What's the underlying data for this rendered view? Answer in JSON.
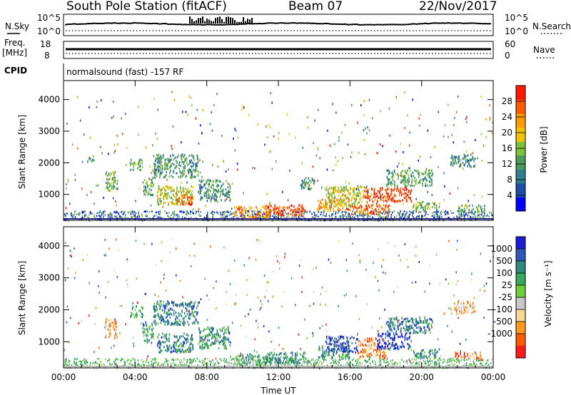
{
  "header": {
    "station": "South Pole Station (fitACF)",
    "beam": "Beam 07",
    "date": "22/Nov/2017"
  },
  "status_panel": {
    "nsky_label": "N.Sky",
    "nsky_ticks": [
      "10^5",
      "10^0"
    ],
    "nsearch_label": "N.Search",
    "nsearch_ticks": [
      "10^5",
      "10^0"
    ],
    "freq_label_line1": "Freq.",
    "freq_label_line2": "[MHz]",
    "freq_ticks": [
      "18",
      "8"
    ],
    "nave_label": "Nave",
    "nave_ticks": [
      "60",
      "0"
    ],
    "cpid_label": "CPID",
    "cpid_text": "normalsound (fast) -157 RF"
  },
  "chart_data": [
    {
      "type": "heatmap",
      "name": "power",
      "ylabel": "Slant Range [km]",
      "xlabel": "",
      "x_ticks": [
        "00:00",
        "04:00",
        "08:00",
        "12:00",
        "16:00",
        "20:00",
        "00:00"
      ],
      "x_range_hours": [
        0,
        24
      ],
      "y_ticks": [
        1000,
        2000,
        3000,
        4000
      ],
      "y_range": [
        180,
        4600
      ],
      "colorbar": {
        "label": "Power [dB]",
        "ticks": [
          4,
          8,
          12,
          16,
          20,
          24,
          28
        ],
        "range": [
          0,
          32
        ],
        "colors": [
          "#0000ff",
          "#1c4fa8",
          "#2f7f8f",
          "#4a9a5a",
          "#7fc13a",
          "#f2c400",
          "#ff9a00",
          "#ff5a00",
          "#ff1a00"
        ]
      },
      "patches": [
        {
          "t0": 1.3,
          "t1": 1.7,
          "r0": 2050,
          "r1": 2250,
          "level": 0.35
        },
        {
          "t0": 2.3,
          "t1": 3.0,
          "r0": 1150,
          "r1": 1750,
          "level": 0.45
        },
        {
          "t0": 3.7,
          "t1": 4.4,
          "r0": 1800,
          "r1": 2150,
          "level": 0.4
        },
        {
          "t0": 4.4,
          "t1": 5.0,
          "r0": 1000,
          "r1": 1600,
          "level": 0.4
        },
        {
          "t0": 5.2,
          "t1": 7.2,
          "r0": 700,
          "r1": 1300,
          "level": 0.55
        },
        {
          "t0": 6.3,
          "t1": 7.2,
          "r0": 700,
          "r1": 1050,
          "level": 0.85
        },
        {
          "t0": 5.0,
          "t1": 7.5,
          "r0": 1550,
          "r1": 2300,
          "level": 0.35
        },
        {
          "t0": 7.5,
          "t1": 9.3,
          "r0": 800,
          "r1": 1500,
          "level": 0.35
        },
        {
          "t0": 9.5,
          "t1": 11.5,
          "r0": 300,
          "r1": 650,
          "level": 0.75
        },
        {
          "t0": 11.2,
          "t1": 13.5,
          "r0": 350,
          "r1": 700,
          "level": 0.85
        },
        {
          "t0": 13.2,
          "t1": 14.0,
          "r0": 1200,
          "r1": 1600,
          "level": 0.35
        },
        {
          "t0": 14.2,
          "t1": 16.0,
          "r0": 500,
          "r1": 900,
          "level": 0.75
        },
        {
          "t0": 14.6,
          "t1": 17.0,
          "r0": 650,
          "r1": 1300,
          "level": 0.55
        },
        {
          "t0": 16.0,
          "t1": 18.2,
          "r0": 400,
          "r1": 700,
          "level": 0.8
        },
        {
          "t0": 16.8,
          "t1": 19.4,
          "r0": 800,
          "r1": 1250,
          "level": 0.9
        },
        {
          "t0": 18.0,
          "t1": 20.6,
          "r0": 1300,
          "r1": 1800,
          "level": 0.4
        },
        {
          "t0": 19.5,
          "t1": 21.0,
          "r0": 500,
          "r1": 800,
          "level": 0.45
        },
        {
          "t0": 22.0,
          "t1": 23.5,
          "r0": 450,
          "r1": 700,
          "level": 0.4
        },
        {
          "t0": 21.6,
          "t1": 23.0,
          "r0": 1900,
          "r1": 2300,
          "level": 0.3
        }
      ]
    },
    {
      "type": "heatmap",
      "name": "velocity",
      "ylabel": "Slant Range [km]",
      "xlabel": "Time UT",
      "x_ticks": [
        "00:00",
        "04:00",
        "08:00",
        "12:00",
        "16:00",
        "20:00",
        "00:00"
      ],
      "x_range_hours": [
        0,
        24
      ],
      "y_ticks": [
        1000,
        2000,
        3000,
        4000
      ],
      "y_range": [
        180,
        4600
      ],
      "colorbar": {
        "label": "Velocity [m s⁻¹]",
        "ticks": [
          "1000",
          "500",
          "100",
          "25",
          "-25",
          "-100",
          "-500",
          "-1000"
        ],
        "colors": [
          "#1c1cd6",
          "#2d58b8",
          "#2f8a7a",
          "#3aa65a",
          "#6ccf3a",
          "#c8c8c8",
          "#f5d896",
          "#ff9a1a",
          "#ff5a00",
          "#ff1a1a"
        ]
      },
      "patches": [
        {
          "t0": 2.3,
          "t1": 3.0,
          "r0": 1150,
          "r1": 1750,
          "level": 0.7
        },
        {
          "t0": 3.7,
          "t1": 4.4,
          "r0": 1800,
          "r1": 2150,
          "level": 0.3
        },
        {
          "t0": 4.4,
          "t1": 5.0,
          "r0": 1000,
          "r1": 1600,
          "level": 0.3
        },
        {
          "t0": 5.2,
          "t1": 7.2,
          "r0": 700,
          "r1": 1300,
          "level": 0.25
        },
        {
          "t0": 5.0,
          "t1": 7.5,
          "r0": 1550,
          "r1": 2300,
          "level": 0.25
        },
        {
          "t0": 7.5,
          "t1": 9.3,
          "r0": 800,
          "r1": 1500,
          "level": 0.3
        },
        {
          "t0": 9.5,
          "t1": 11.5,
          "r0": 300,
          "r1": 650,
          "level": 0.35
        },
        {
          "t0": 11.2,
          "t1": 13.5,
          "r0": 350,
          "r1": 700,
          "level": 0.3
        },
        {
          "t0": 14.2,
          "t1": 16.0,
          "r0": 500,
          "r1": 900,
          "level": 0.3
        },
        {
          "t0": 14.6,
          "t1": 16.4,
          "r0": 700,
          "r1": 1200,
          "level": 0.1
        },
        {
          "t0": 16.4,
          "t1": 18.0,
          "r0": 500,
          "r1": 1150,
          "level": 0.75
        },
        {
          "t0": 17.5,
          "t1": 19.4,
          "r0": 800,
          "r1": 1300,
          "level": 0.05
        },
        {
          "t0": 18.0,
          "t1": 20.6,
          "r0": 1300,
          "r1": 1800,
          "level": 0.25
        },
        {
          "t0": 19.5,
          "t1": 21.0,
          "r0": 500,
          "r1": 800,
          "level": 0.3
        },
        {
          "t0": 21.8,
          "t1": 23.4,
          "r0": 450,
          "r1": 700,
          "level": 0.8
        },
        {
          "t0": 21.6,
          "t1": 23.0,
          "r0": 1900,
          "r1": 2300,
          "level": 0.7
        }
      ]
    }
  ]
}
